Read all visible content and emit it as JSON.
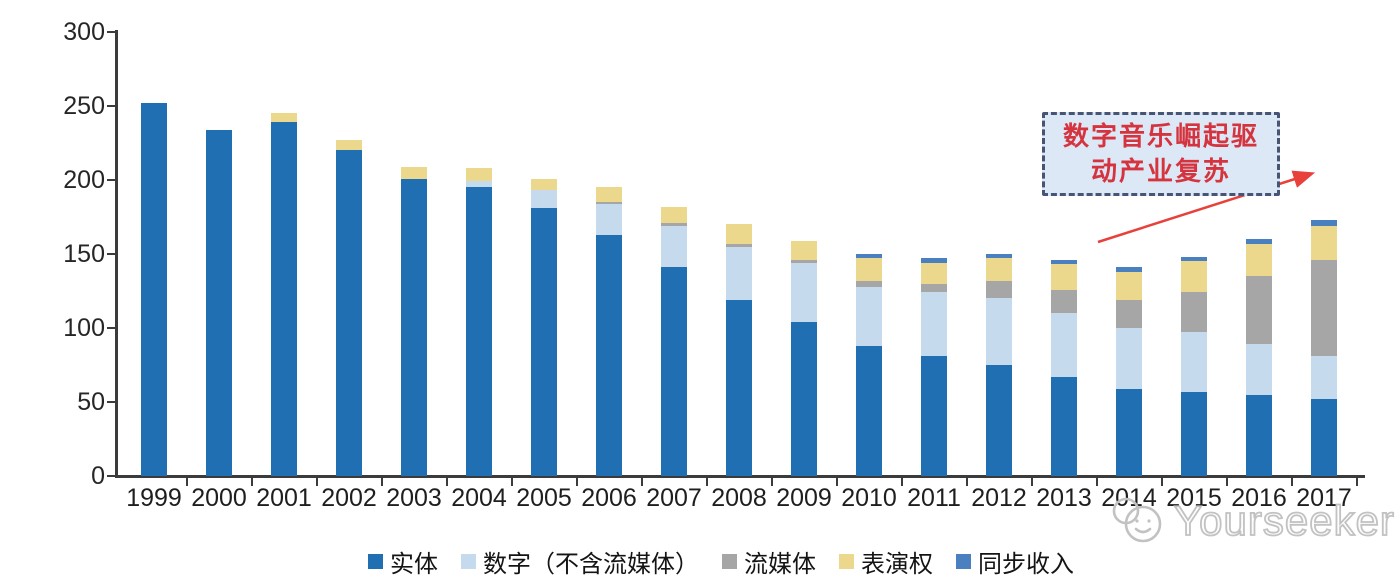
{
  "chart_data": {
    "type": "bar",
    "stacked": true,
    "categories": [
      "1999",
      "2000",
      "2001",
      "2002",
      "2003",
      "2004",
      "2005",
      "2006",
      "2007",
      "2008",
      "2009",
      "2010",
      "2011",
      "2012",
      "2013",
      "2014",
      "2015",
      "2016",
      "2017"
    ],
    "series": [
      {
        "name": "实体",
        "color": "#1f6fb2",
        "values": [
          252,
          234,
          239,
          220,
          201,
          195,
          181,
          163,
          141,
          119,
          104,
          88,
          81,
          75,
          67,
          59,
          57,
          55,
          52
        ]
      },
      {
        "name": "数字（不含流媒体）",
        "color": "#c6daee",
        "values": [
          0,
          0,
          0,
          0,
          0,
          4,
          12,
          21,
          28,
          36,
          40,
          40,
          43,
          45,
          43,
          41,
          40,
          34,
          29
        ]
      },
      {
        "name": "流媒体",
        "color": "#a6a6a6",
        "values": [
          0,
          0,
          0,
          0,
          0,
          0,
          0,
          1,
          2,
          2,
          2,
          4,
          6,
          12,
          16,
          19,
          27,
          46,
          65
        ]
      },
      {
        "name": "表演权",
        "color": "#ebd88d",
        "values": [
          0,
          0,
          6,
          7,
          8,
          9,
          8,
          10,
          11,
          13,
          13,
          15,
          14,
          15,
          17,
          19,
          21,
          22,
          23
        ]
      },
      {
        "name": "同步收入",
        "color": "#4a80c0",
        "values": [
          0,
          0,
          0,
          0,
          0,
          0,
          0,
          0,
          0,
          0,
          0,
          3,
          3,
          3,
          3,
          3,
          3,
          3,
          4
        ]
      }
    ],
    "title": "",
    "xlabel": "",
    "ylabel": "",
    "ylim": [
      0,
      300
    ],
    "yticks": [
      0,
      50,
      100,
      150,
      200,
      250,
      300
    ],
    "grid": false,
    "legend_position": "bottom"
  },
  "annotation": {
    "line1": "数字音乐崛起驱",
    "line2": "动产业复苏",
    "box_fill": "#dce8f5",
    "border_color": "#475473",
    "text_color": "#d5343f",
    "arrow_color": "#e8413c"
  },
  "watermark": {
    "text": "Yourseeker",
    "logo": "yourseeker-smiley-chat-logo",
    "color": "#c2c2c2"
  }
}
